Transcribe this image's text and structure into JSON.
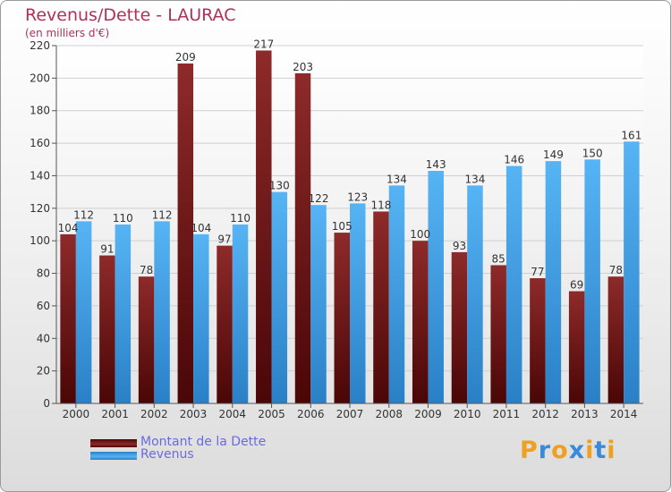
{
  "chart_data": {
    "type": "bar",
    "title": "Revenus/Dette - LAURAC",
    "subtitle": "(en milliers d'€)",
    "categories": [
      "2000",
      "2001",
      "2002",
      "2003",
      "2004",
      "2005",
      "2006",
      "2007",
      "2008",
      "2009",
      "2010",
      "2011",
      "2012",
      "2013",
      "2014"
    ],
    "series": [
      {
        "name": "Montant de la Dette",
        "color": "#7a1c1c",
        "values": [
          104,
          91,
          78,
          209,
          97,
          217,
          203,
          105,
          118,
          100,
          93,
          85,
          77,
          69,
          78
        ]
      },
      {
        "name": "Revenus",
        "color": "#3aa0e8",
        "values": [
          112,
          110,
          112,
          104,
          110,
          130,
          122,
          123,
          134,
          143,
          134,
          146,
          149,
          150,
          161
        ]
      }
    ],
    "ylim": [
      0,
      220
    ],
    "yticks": [
      0,
      20,
      40,
      60,
      80,
      100,
      120,
      140,
      160,
      180,
      200,
      220
    ],
    "grid": true,
    "legend_placement": "bottom-left"
  },
  "logo": {
    "text": "Proxiti",
    "colors": [
      "#f0a020",
      "#3a8ad8",
      "#f0a020",
      "#3a8ad8",
      "#f0a020",
      "#3a8ad8",
      "#f0a020"
    ]
  }
}
